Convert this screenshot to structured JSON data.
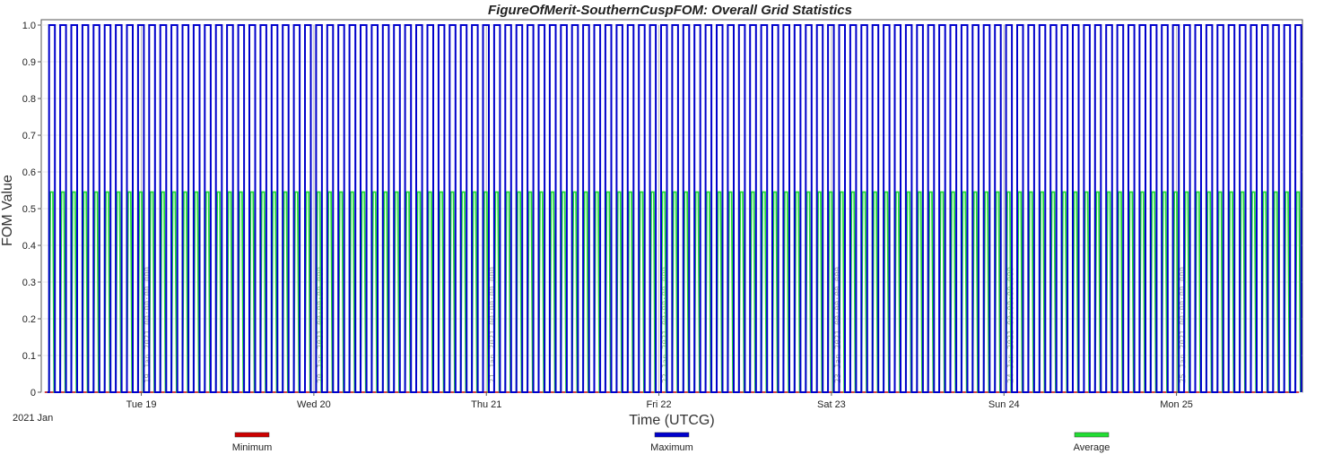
{
  "chart_data": {
    "type": "line",
    "title": "FigureOfMerit-SouthernCuspFOM:  Overall Grid Statistics",
    "xlabel": "Time (UTCG)",
    "ylabel": "FOM Value",
    "date_prefix": "2021 Jan",
    "x_range_days": [
      18.42,
      25.73
    ],
    "ylim": [
      0,
      1
    ],
    "yticks": [
      "0",
      "0.1",
      "0.2",
      "0.3",
      "0.4",
      "0.5",
      "0.6",
      "0.7",
      "0.8",
      "0.9",
      "1.0"
    ],
    "xticks": [
      {
        "day": 19,
        "label": "Tue 19"
      },
      {
        "day": 20,
        "label": "Wed 20"
      },
      {
        "day": 21,
        "label": "Thu 21"
      },
      {
        "day": 22,
        "label": "Fri 22"
      },
      {
        "day": 23,
        "label": "Sat 23"
      },
      {
        "day": 24,
        "label": "Sun 24"
      },
      {
        "day": 25,
        "label": "Mon 25"
      }
    ],
    "grid": true,
    "legend_position": "bottom",
    "pulse_period_days": 0.0645,
    "pulse_start_day": 18.465,
    "series": [
      {
        "name": "Minimum",
        "color": "#cc0000",
        "pulse_value": 0,
        "pulse_width_days": 0
      },
      {
        "name": "Maximum",
        "color": "#0000cc",
        "pulse_value": 1.0,
        "pulse_width_days": 0.034
      },
      {
        "name": "Average",
        "color": "#22dd33",
        "pulse_value": 0.545,
        "pulse_width_days": 0.03
      }
    ],
    "annotations": [
      {
        "day": 19.0,
        "text": "19 Jan 2021 00:00:00.000"
      },
      {
        "day": 20.0,
        "text": "20 Jan 2021 00:00:00.000"
      },
      {
        "day": 21.0,
        "text": "21 Jan 2021 00:00:00.000"
      },
      {
        "day": 22.0,
        "text": "22 Jan 2021 00:00:00.000"
      },
      {
        "day": 23.0,
        "text": "23 Jan 2021 00:00:00.000"
      },
      {
        "day": 24.0,
        "text": "24 Jan 2021 00:00:00.000"
      },
      {
        "day": 25.0,
        "text": "25 Jan 2021 00:00:00.000"
      }
    ]
  }
}
